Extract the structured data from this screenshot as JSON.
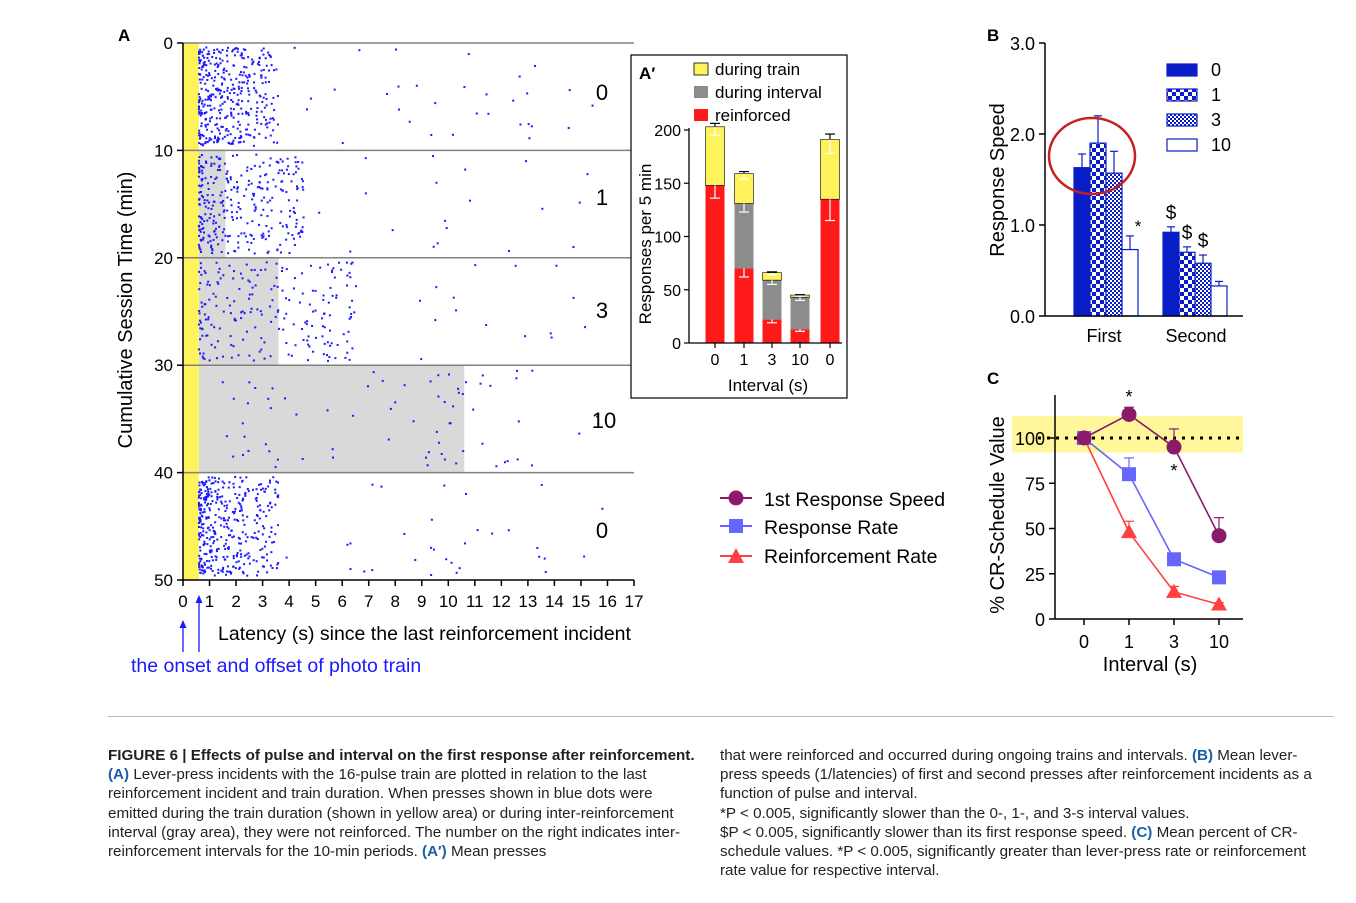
{
  "panel_a": {
    "letter": "A",
    "ylabel": "Cumulative Session Time (min)",
    "xlabel": "Latency (s) since the last reinforcement incident",
    "yticks": [
      "0",
      "10",
      "20",
      "30",
      "40",
      "50"
    ],
    "xticks": [
      "0",
      "1",
      "2",
      "3",
      "4",
      "5",
      "6",
      "7",
      "8",
      "9",
      "10",
      "11",
      "12",
      "13",
      "14",
      "15",
      "16",
      "17"
    ],
    "interval_labels": [
      "0",
      "1",
      "3",
      "10",
      "0"
    ],
    "onset_note": "the onset and offset of photo train",
    "colors": {
      "train": "#fff35c",
      "interval": "#d9d9d9",
      "dots": "#1a1aff",
      "note": "#1a1aff"
    }
  },
  "panel_a_prime": {
    "letter": "A′",
    "legend": [
      "during train",
      "during interval",
      "reinforced"
    ],
    "ylabel": "Responses per 5 min",
    "xlabel": "Interval (s)",
    "yticks": [
      "0",
      "50",
      "100",
      "150",
      "200"
    ],
    "colors": {
      "train": "#fff35c",
      "interval": "#8c8c8c",
      "reinforced": "#ff1a1a"
    }
  },
  "panel_b": {
    "letter": "B",
    "ylabel": "Response Speed",
    "yticks": [
      "0.0",
      "1.0",
      "2.0",
      "3.0"
    ],
    "legend": [
      "0",
      "1",
      "3",
      "10"
    ],
    "color": "#0a1ec8",
    "star": "*",
    "dollar": "$"
  },
  "panel_c": {
    "letter": "C",
    "ylabel": "% CR-Schedule Value",
    "xlabel": "Interval (s)",
    "yticks": [
      "0",
      "25",
      "50",
      "75",
      "100"
    ],
    "legend": [
      "1st Response Speed",
      "Response Rate",
      "Reinforcement Rate"
    ],
    "star": "*",
    "colors": {
      "speed": "#8b1a6b",
      "rate": "#6666ff",
      "reinforcement": "#ff4040",
      "band": "#fff799"
    }
  },
  "chart_data": [
    {
      "panel": "A",
      "type": "scatter",
      "xlabel": "Latency (s) since the last reinforcement incident",
      "ylabel": "Cumulative Session Time (min)",
      "xlim": [
        0,
        17
      ],
      "ylim": [
        0,
        50
      ],
      "y_inverted": true,
      "train_duration_s": 0.6,
      "periods": [
        {
          "label": "0",
          "start_min": 0,
          "end_min": 10,
          "interval_s": 0
        },
        {
          "label": "1",
          "start_min": 10,
          "end_min": 20,
          "interval_s": 1
        },
        {
          "label": "3",
          "start_min": 20,
          "end_min": 30,
          "interval_s": 3
        },
        {
          "label": "10",
          "start_min": 30,
          "end_min": 40,
          "interval_s": 10
        },
        {
          "label": "0",
          "start_min": 40,
          "end_min": 50,
          "interval_s": 0
        }
      ]
    },
    {
      "panel": "A′",
      "type": "bar",
      "stacked": true,
      "categories": [
        "0",
        "1",
        "3",
        "10",
        "0"
      ],
      "xlabel": "Interval (s)",
      "ylabel": "Responses per 5 min",
      "ylim": [
        0,
        210
      ],
      "series": [
        {
          "name": "reinforced",
          "values": [
            148,
            70,
            22,
            13,
            135
          ],
          "error": [
            12,
            8,
            3,
            2,
            20
          ]
        },
        {
          "name": "during interval",
          "values": [
            0,
            61,
            37,
            30,
            0
          ],
          "error": [
            0,
            8,
            4,
            3,
            0
          ]
        },
        {
          "name": "during train",
          "values": [
            55,
            28,
            7,
            2,
            56
          ],
          "error": [
            8,
            5,
            2,
            1,
            13
          ]
        }
      ],
      "legend": "top-right"
    },
    {
      "panel": "B",
      "type": "bar",
      "categories": [
        "First",
        "Second"
      ],
      "ylabel": "Response Speed",
      "ylim": [
        0,
        3.0
      ],
      "series": [
        {
          "name": "0",
          "values": [
            1.63,
            0.92
          ],
          "error": [
            0.15,
            0.06
          ]
        },
        {
          "name": "1",
          "values": [
            1.9,
            0.7
          ],
          "error": [
            0.3,
            0.06
          ]
        },
        {
          "name": "3",
          "values": [
            1.57,
            0.58
          ],
          "error": [
            0.24,
            0.09
          ]
        },
        {
          "name": "10",
          "values": [
            0.73,
            0.33
          ],
          "error": [
            0.15,
            0.05
          ]
        }
      ],
      "annotations": [
        {
          "category": "First",
          "series": "10",
          "text": "*"
        },
        {
          "category": "Second",
          "series": "0",
          "text": "$"
        },
        {
          "category": "Second",
          "series": "1",
          "text": "$"
        },
        {
          "category": "Second",
          "series": "3",
          "text": "$"
        }
      ],
      "legend": "top-right"
    },
    {
      "panel": "C",
      "type": "line",
      "x": [
        "0",
        "1",
        "3",
        "10"
      ],
      "xlabel": "Interval (s)",
      "ylabel": "% CR-Schedule Value",
      "ylim": [
        0,
        120
      ],
      "reference_line": 100,
      "series": [
        {
          "name": "1st Response Speed",
          "values": [
            100,
            113,
            95,
            46
          ],
          "error": [
            3,
            4,
            10,
            10
          ],
          "marker": "circle"
        },
        {
          "name": "Response Rate",
          "values": [
            100,
            80,
            33,
            23
          ],
          "error": [
            2,
            9,
            3,
            2
          ],
          "marker": "square"
        },
        {
          "name": "Reinforcement Rate",
          "values": [
            100,
            48,
            15,
            8
          ],
          "error": [
            2,
            6,
            3,
            1
          ],
          "marker": "triangle"
        }
      ],
      "annotations": [
        {
          "x": "1",
          "series": "1st Response Speed",
          "text": "*"
        },
        {
          "x": "3",
          "series": "1st Response Speed",
          "text": "*"
        }
      ]
    }
  ],
  "caption": {
    "title": "FIGURE 6 | Effects of pulse and interval on the first response after reinforcement.",
    "a_label": "(A)",
    "a_text": " Lever-press incidents with the 16-pulse train are plotted in relation to the last reinforcement incident and train duration. When presses shown in blue dots were emitted during the train duration (shown in yellow area) or during inter-reinforcement interval (gray area), they were not reinforced. The number on the right indicates inter-reinforcement intervals for the 10-min periods. ",
    "ap_label": "(A′)",
    "ap_text": " Mean presses",
    "right_1": "that were reinforced and occurred during ongoing trains and intervals. ",
    "b_label": "(B)",
    "b_text": " Mean lever-press speeds (1/latencies) of first and second presses after reinforcement incidents as a function of pulse and interval.",
    "star_note_1": "*P < 0.005, significantly slower than the 0-, 1-, and 3-s interval values.",
    "dollar_note": "$P < 0.005, significantly slower than its first response speed. ",
    "c_label": "(C)",
    "c_text": " Mean percent of CR-schedule values. *P < 0.005, significantly greater than lever-press rate or reinforcement rate value for respective interval."
  }
}
